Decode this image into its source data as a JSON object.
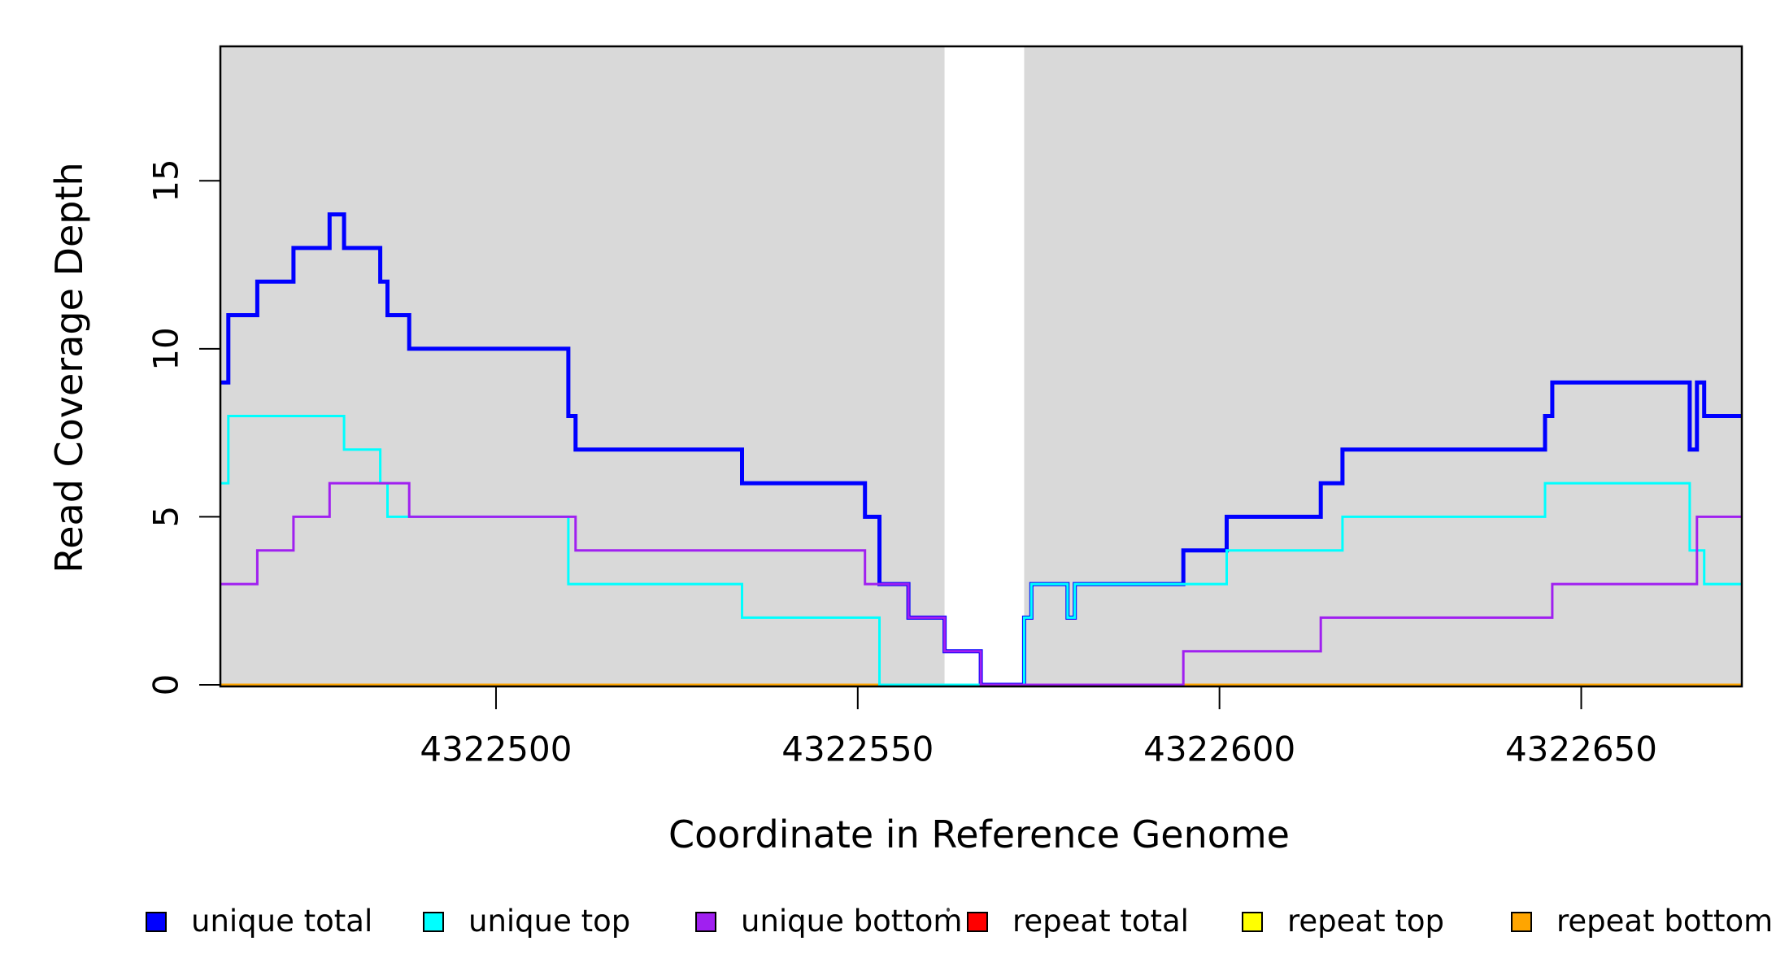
{
  "chart_data": {
    "type": "line",
    "subtype": "step-after",
    "title": "",
    "xlabel": "Coordinate in Reference Genome",
    "ylabel": "Read Coverage Depth",
    "xlim": [
      4322461.9,
      4322672.2
    ],
    "ylim": [
      0,
      19
    ],
    "x_ticks": [
      4322500,
      4322550,
      4322600,
      4322650
    ],
    "y_ticks": [
      0,
      5,
      10,
      15
    ],
    "grid": "off",
    "legend_position": "bottom",
    "plot_bg_color": "#D9D9D9",
    "border_color": "#000000",
    "gap_region": {
      "x0": 4322562,
      "x1": 4322573,
      "color": "#FFFFFF"
    },
    "series": [
      {
        "name": "repeat total",
        "color": "#FF0000",
        "width": 3,
        "points": [
          [
            4322461.9,
            0
          ],
          [
            4322672.2,
            0
          ]
        ]
      },
      {
        "name": "repeat top",
        "color": "#FFFF00",
        "width": 3,
        "points": [
          [
            4322461.9,
            0
          ],
          [
            4322672.2,
            0
          ]
        ]
      },
      {
        "name": "repeat bottom",
        "color": "#FFA500",
        "width": 3,
        "points": [
          [
            4322461.9,
            0
          ],
          [
            4322672.2,
            0
          ]
        ]
      },
      {
        "name": "unique total",
        "color": "#0000FF",
        "width": 5,
        "points": [
          [
            4322461.9,
            9
          ],
          [
            4322463,
            11
          ],
          [
            4322467,
            12
          ],
          [
            4322472,
            13
          ],
          [
            4322477,
            14
          ],
          [
            4322479,
            13
          ],
          [
            4322484,
            12
          ],
          [
            4322485,
            11
          ],
          [
            4322488,
            10
          ],
          [
            4322510,
            8
          ],
          [
            4322511,
            7
          ],
          [
            4322534,
            6
          ],
          [
            4322551,
            5
          ],
          [
            4322553,
            3
          ],
          [
            4322557,
            2
          ],
          [
            4322562,
            1
          ],
          [
            4322567,
            0
          ],
          [
            4322573,
            2
          ],
          [
            4322574,
            3
          ],
          [
            4322579,
            2
          ],
          [
            4322580,
            3
          ],
          [
            4322595,
            4
          ],
          [
            4322601,
            5
          ],
          [
            4322614,
            6
          ],
          [
            4322617,
            7
          ],
          [
            4322645,
            8
          ],
          [
            4322646,
            9
          ],
          [
            4322665,
            7
          ],
          [
            4322666,
            9
          ],
          [
            4322667,
            8
          ],
          [
            4322672.2,
            8
          ]
        ]
      },
      {
        "name": "unique top",
        "color": "#00FFFF",
        "width": 3,
        "points": [
          [
            4322461.9,
            6
          ],
          [
            4322463,
            8
          ],
          [
            4322479,
            7
          ],
          [
            4322484,
            6
          ],
          [
            4322485,
            5
          ],
          [
            4322510,
            3
          ],
          [
            4322534,
            2
          ],
          [
            4322553,
            0
          ],
          [
            4322573,
            2
          ],
          [
            4322574,
            3
          ],
          [
            4322579,
            2
          ],
          [
            4322580,
            3
          ],
          [
            4322601,
            4
          ],
          [
            4322617,
            5
          ],
          [
            4322645,
            6
          ],
          [
            4322665,
            4
          ],
          [
            4322667,
            3
          ],
          [
            4322672.2,
            3
          ]
        ]
      },
      {
        "name": "unique bottom",
        "color": "#A020F0",
        "width": 3,
        "points": [
          [
            4322461.9,
            3
          ],
          [
            4322467,
            4
          ],
          [
            4322472,
            5
          ],
          [
            4322477,
            6
          ],
          [
            4322488,
            5
          ],
          [
            4322511,
            4
          ],
          [
            4322551,
            3
          ],
          [
            4322557,
            2
          ],
          [
            4322562,
            1
          ],
          [
            4322567,
            0
          ],
          [
            4322595,
            1
          ],
          [
            4322614,
            2
          ],
          [
            4322646,
            3
          ],
          [
            4322666,
            5
          ],
          [
            4322672.2,
            5
          ]
        ]
      }
    ],
    "legend": [
      {
        "label": "unique total",
        "color": "#0000FF"
      },
      {
        "label": "unique top",
        "color": "#00FFFF"
      },
      {
        "label": "unique bottom",
        "color": "#A020F0"
      },
      {
        "label": "repeat total",
        "color": "#FF0000"
      },
      {
        "label": "repeat top",
        "color": "#FFFF00"
      },
      {
        "label": "repeat bottom",
        "color": "#FFA500"
      }
    ]
  }
}
